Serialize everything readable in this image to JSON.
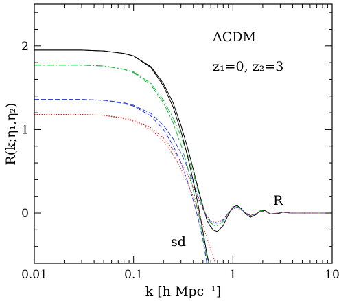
{
  "chart_data": {
    "type": "line",
    "xscale": "log",
    "xlim": [
      0.01,
      10
    ],
    "ylim": [
      -0.6,
      2.5
    ],
    "xlabel": "k [h Mpc⁻¹]",
    "ylabel": "R(k;η₁,η₂)",
    "x_ticks": [
      0.01,
      0.1,
      1,
      10
    ],
    "x_tick_labels": [
      "0.01",
      "0.1",
      "1",
      "10"
    ],
    "y_ticks": [
      0,
      1,
      2
    ],
    "y_tick_labels": [
      "0",
      "1",
      "2"
    ],
    "annotations": {
      "model": "ΛCDM",
      "redshift": "z₁=0, z₂=3",
      "R_label": "R",
      "sd_label": "sd"
    },
    "series": [
      {
        "group": "R",
        "style": "solid",
        "color": "#000000",
        "points": [
          [
            0.01,
            1.95
          ],
          [
            0.03,
            1.95
          ],
          [
            0.05,
            1.94
          ],
          [
            0.08,
            1.91
          ],
          [
            0.1,
            1.88
          ],
          [
            0.15,
            1.75
          ],
          [
            0.2,
            1.55
          ],
          [
            0.25,
            1.32
          ],
          [
            0.3,
            1.05
          ],
          [
            0.35,
            0.78
          ],
          [
            0.4,
            0.52
          ],
          [
            0.45,
            0.28
          ],
          [
            0.5,
            0.08
          ],
          [
            0.55,
            -0.09
          ],
          [
            0.6,
            -0.17
          ],
          [
            0.65,
            -0.21
          ],
          [
            0.7,
            -0.22
          ],
          [
            0.8,
            -0.15
          ],
          [
            0.9,
            -0.02
          ],
          [
            1.0,
            0.07
          ],
          [
            1.1,
            0.09
          ],
          [
            1.2,
            0.06
          ],
          [
            1.35,
            -0.01
          ],
          [
            1.5,
            -0.05
          ],
          [
            1.7,
            -0.02
          ],
          [
            1.9,
            0.03
          ],
          [
            2.1,
            0.03
          ],
          [
            2.4,
            -0.01
          ],
          [
            2.8,
            -0.01
          ],
          [
            3.2,
            0.01
          ],
          [
            3.8,
            0.0
          ],
          [
            5,
            0.0
          ],
          [
            10,
            0.0
          ]
        ]
      },
      {
        "group": "R",
        "style": "dash-dot",
        "color": "#19b33a",
        "points": [
          [
            0.01,
            1.77
          ],
          [
            0.03,
            1.77
          ],
          [
            0.05,
            1.76
          ],
          [
            0.08,
            1.72
          ],
          [
            0.1,
            1.69
          ],
          [
            0.15,
            1.55
          ],
          [
            0.2,
            1.35
          ],
          [
            0.25,
            1.14
          ],
          [
            0.3,
            0.92
          ],
          [
            0.35,
            0.7
          ],
          [
            0.4,
            0.47
          ],
          [
            0.45,
            0.25
          ],
          [
            0.5,
            0.07
          ],
          [
            0.55,
            -0.06
          ],
          [
            0.6,
            -0.12
          ],
          [
            0.65,
            -0.15
          ],
          [
            0.7,
            -0.15
          ],
          [
            0.8,
            -0.1
          ],
          [
            0.9,
            0.0
          ],
          [
            1.0,
            0.06
          ],
          [
            1.1,
            0.08
          ],
          [
            1.2,
            0.05
          ],
          [
            1.35,
            0.0
          ],
          [
            1.5,
            -0.03
          ],
          [
            1.7,
            -0.01
          ],
          [
            1.9,
            0.03
          ],
          [
            2.1,
            0.02
          ],
          [
            2.4,
            -0.01
          ],
          [
            2.8,
            0.0
          ],
          [
            3.2,
            0.01
          ],
          [
            3.8,
            0.0
          ],
          [
            5,
            0.0
          ],
          [
            10,
            0.0
          ]
        ]
      },
      {
        "group": "R",
        "style": "dashed",
        "color": "#2a3fd6",
        "points": [
          [
            0.01,
            1.36
          ],
          [
            0.03,
            1.36
          ],
          [
            0.05,
            1.35
          ],
          [
            0.08,
            1.32
          ],
          [
            0.1,
            1.29
          ],
          [
            0.15,
            1.19
          ],
          [
            0.2,
            1.05
          ],
          [
            0.25,
            0.89
          ],
          [
            0.3,
            0.72
          ],
          [
            0.35,
            0.54
          ],
          [
            0.4,
            0.36
          ],
          [
            0.45,
            0.19
          ],
          [
            0.5,
            0.05
          ],
          [
            0.55,
            -0.05
          ],
          [
            0.6,
            -0.1
          ],
          [
            0.65,
            -0.12
          ],
          [
            0.7,
            -0.12
          ],
          [
            0.8,
            -0.08
          ],
          [
            0.9,
            0.0
          ],
          [
            1.0,
            0.05
          ],
          [
            1.1,
            0.07
          ],
          [
            1.2,
            0.05
          ],
          [
            1.35,
            0.0
          ],
          [
            1.5,
            -0.03
          ],
          [
            1.7,
            -0.01
          ],
          [
            1.9,
            0.02
          ],
          [
            2.1,
            0.02
          ],
          [
            2.4,
            -0.01
          ],
          [
            2.8,
            0.0
          ],
          [
            3.2,
            0.01
          ],
          [
            3.8,
            0.0
          ],
          [
            5,
            0.0
          ],
          [
            10,
            0.0
          ]
        ]
      },
      {
        "group": "R",
        "style": "dotted",
        "color": "#e02020",
        "points": [
          [
            0.01,
            1.18
          ],
          [
            0.03,
            1.18
          ],
          [
            0.05,
            1.17
          ],
          [
            0.08,
            1.14
          ],
          [
            0.1,
            1.11
          ],
          [
            0.15,
            1.02
          ],
          [
            0.2,
            0.9
          ],
          [
            0.25,
            0.76
          ],
          [
            0.3,
            0.61
          ],
          [
            0.35,
            0.46
          ],
          [
            0.4,
            0.31
          ],
          [
            0.45,
            0.17
          ],
          [
            0.5,
            0.05
          ],
          [
            0.55,
            -0.04
          ],
          [
            0.6,
            -0.09
          ],
          [
            0.65,
            -0.11
          ],
          [
            0.7,
            -0.11
          ],
          [
            0.8,
            -0.07
          ],
          [
            0.9,
            0.0
          ],
          [
            1.0,
            0.05
          ],
          [
            1.1,
            0.06
          ],
          [
            1.2,
            0.04
          ],
          [
            1.35,
            0.0
          ],
          [
            1.5,
            -0.02
          ],
          [
            1.7,
            -0.01
          ],
          [
            1.9,
            0.02
          ],
          [
            2.1,
            0.02
          ],
          [
            2.4,
            -0.01
          ],
          [
            2.8,
            0.0
          ],
          [
            3.2,
            0.01
          ],
          [
            3.8,
            0.0
          ],
          [
            5,
            0.0
          ],
          [
            10,
            0.0
          ]
        ]
      },
      {
        "group": "sd",
        "style": "solid",
        "color": "#000000",
        "points": [
          [
            0.01,
            1.95
          ],
          [
            0.03,
            1.95
          ],
          [
            0.05,
            1.94
          ],
          [
            0.08,
            1.91
          ],
          [
            0.1,
            1.88
          ],
          [
            0.15,
            1.74
          ],
          [
            0.2,
            1.52
          ],
          [
            0.25,
            1.27
          ],
          [
            0.3,
            0.98
          ],
          [
            0.35,
            0.68
          ],
          [
            0.4,
            0.38
          ],
          [
            0.45,
            0.08
          ],
          [
            0.5,
            -0.22
          ],
          [
            0.55,
            -0.5
          ],
          [
            0.58,
            -0.62
          ]
        ]
      },
      {
        "group": "sd",
        "style": "dash-dot",
        "color": "#19b33a",
        "points": [
          [
            0.01,
            1.77
          ],
          [
            0.03,
            1.77
          ],
          [
            0.05,
            1.76
          ],
          [
            0.08,
            1.72
          ],
          [
            0.1,
            1.68
          ],
          [
            0.15,
            1.53
          ],
          [
            0.2,
            1.32
          ],
          [
            0.25,
            1.08
          ],
          [
            0.3,
            0.82
          ],
          [
            0.35,
            0.55
          ],
          [
            0.4,
            0.27
          ],
          [
            0.45,
            0.0
          ],
          [
            0.5,
            -0.27
          ],
          [
            0.54,
            -0.5
          ],
          [
            0.57,
            -0.62
          ]
        ]
      },
      {
        "group": "sd",
        "style": "dashed",
        "color": "#2a3fd6",
        "points": [
          [
            0.01,
            1.36
          ],
          [
            0.03,
            1.36
          ],
          [
            0.05,
            1.35
          ],
          [
            0.08,
            1.31
          ],
          [
            0.1,
            1.28
          ],
          [
            0.15,
            1.16
          ],
          [
            0.2,
            1.0
          ],
          [
            0.25,
            0.81
          ],
          [
            0.3,
            0.6
          ],
          [
            0.35,
            0.38
          ],
          [
            0.4,
            0.15
          ],
          [
            0.45,
            -0.08
          ],
          [
            0.5,
            -0.32
          ],
          [
            0.53,
            -0.5
          ],
          [
            0.55,
            -0.62
          ]
        ]
      },
      {
        "group": "sd",
        "style": "dotted",
        "color": "#e02020",
        "points": [
          [
            0.01,
            1.18
          ],
          [
            0.03,
            1.18
          ],
          [
            0.05,
            1.17
          ],
          [
            0.08,
            1.13
          ],
          [
            0.1,
            1.1
          ],
          [
            0.15,
            1.0
          ],
          [
            0.2,
            0.86
          ],
          [
            0.25,
            0.7
          ],
          [
            0.3,
            0.53
          ],
          [
            0.35,
            0.36
          ],
          [
            0.4,
            0.19
          ],
          [
            0.45,
            0.02
          ],
          [
            0.5,
            -0.15
          ],
          [
            0.55,
            -0.3
          ],
          [
            0.6,
            -0.44
          ],
          [
            0.65,
            -0.56
          ],
          [
            0.68,
            -0.62
          ]
        ]
      }
    ]
  }
}
